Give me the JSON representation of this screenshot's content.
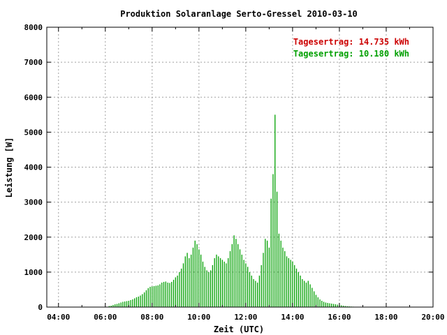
{
  "chart_data": {
    "type": "bar",
    "title": "Produktion Solaranlage Serto-Gressel 2010-03-10",
    "xlabel": "Zeit (UTC)",
    "ylabel": "Leistung [W]",
    "xlim": [
      3.5,
      20.0
    ],
    "ylim": [
      0,
      8000
    ],
    "x_ticks": [
      "04:00",
      "06:00",
      "08:00",
      "10:00",
      "12:00",
      "14:00",
      "16:00",
      "18:00",
      "20:00"
    ],
    "y_ticks": [
      "0",
      "1000",
      "2000",
      "3000",
      "4000",
      "5000",
      "6000",
      "7000",
      "8000"
    ],
    "grid": true,
    "legend_position": "top-right",
    "series": [
      {
        "label": "Tagesertrag: 14.735 kWh",
        "color": "#cc0000",
        "x": [],
        "values": []
      },
      {
        "label": "Tagesertrag: 10.180 kWh",
        "color": "#00a000",
        "x": [
          6.167,
          6.25,
          6.333,
          6.417,
          6.5,
          6.583,
          6.667,
          6.75,
          6.833,
          6.917,
          7.0,
          7.083,
          7.167,
          7.25,
          7.333,
          7.417,
          7.5,
          7.583,
          7.667,
          7.75,
          7.833,
          7.917,
          8.0,
          8.083,
          8.167,
          8.25,
          8.333,
          8.417,
          8.5,
          8.583,
          8.667,
          8.75,
          8.833,
          8.917,
          9.0,
          9.083,
          9.167,
          9.25,
          9.333,
          9.417,
          9.5,
          9.583,
          9.667,
          9.75,
          9.833,
          9.917,
          10.0,
          10.083,
          10.167,
          10.25,
          10.333,
          10.417,
          10.5,
          10.583,
          10.667,
          10.75,
          10.833,
          10.917,
          11.0,
          11.083,
          11.167,
          11.25,
          11.333,
          11.417,
          11.5,
          11.583,
          11.667,
          11.75,
          11.833,
          11.917,
          12.0,
          12.083,
          12.167,
          12.25,
          12.333,
          12.417,
          12.5,
          12.583,
          12.667,
          12.75,
          12.833,
          12.917,
          13.0,
          13.083,
          13.167,
          13.25,
          13.333,
          13.417,
          13.5,
          13.583,
          13.667,
          13.75,
          13.833,
          13.917,
          14.0,
          14.083,
          14.167,
          14.25,
          14.333,
          14.417,
          14.5,
          14.583,
          14.667,
          14.75,
          14.833,
          14.917,
          15.0,
          15.083,
          15.167,
          15.25,
          15.333,
          15.417,
          15.5,
          15.583,
          15.667,
          15.75,
          15.833,
          15.917,
          16.0,
          16.083,
          16.167,
          16.25,
          16.333,
          16.417,
          16.5,
          16.583,
          16.667,
          16.75,
          16.833,
          16.917
        ],
        "values": [
          30,
          40,
          60,
          80,
          90,
          110,
          130,
          150,
          160,
          170,
          180,
          200,
          220,
          250,
          280,
          300,
          330,
          370,
          420,
          480,
          540,
          580,
          590,
          600,
          610,
          620,
          650,
          700,
          720,
          730,
          700,
          690,
          720,
          780,
          850,
          900,
          1000,
          1100,
          1250,
          1450,
          1550,
          1400,
          1500,
          1700,
          1900,
          1800,
          1650,
          1500,
          1300,
          1150,
          1050,
          1000,
          1050,
          1200,
          1400,
          1500,
          1450,
          1400,
          1350,
          1300,
          1250,
          1400,
          1600,
          1800,
          2050,
          1950,
          1800,
          1650,
          1500,
          1350,
          1250,
          1150,
          1000,
          900,
          800,
          750,
          700,
          900,
          1200,
          1550,
          1950,
          1900,
          1700,
          3100,
          3800,
          5500,
          3300,
          2100,
          1900,
          1700,
          1600,
          1450,
          1400,
          1350,
          1300,
          1200,
          1100,
          1000,
          900,
          800,
          750,
          700,
          750,
          650,
          550,
          450,
          350,
          280,
          220,
          180,
          150,
          130,
          120,
          110,
          100,
          90,
          80,
          70,
          60,
          50,
          40,
          30,
          25,
          20,
          15,
          12,
          10,
          8,
          6,
          5
        ]
      }
    ]
  }
}
